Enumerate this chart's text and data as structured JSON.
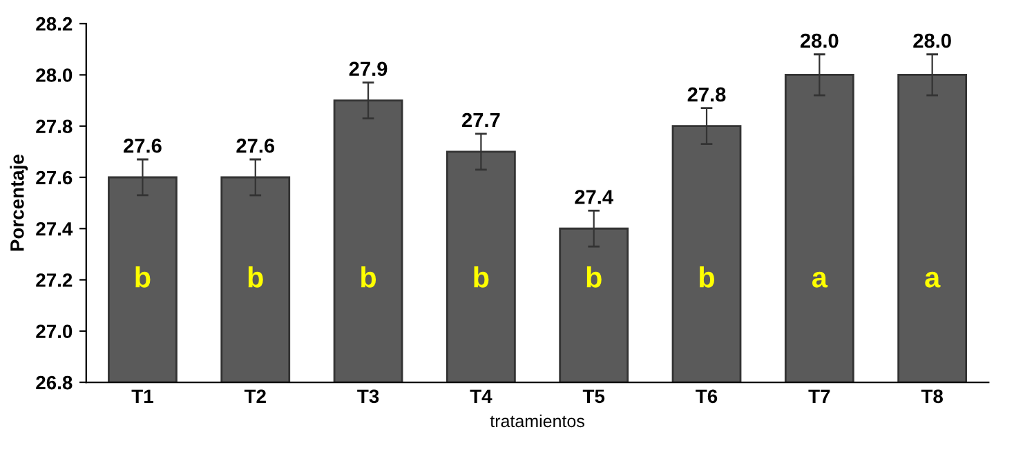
{
  "chart_data": {
    "type": "bar",
    "xlabel": "tratamientos",
    "ylabel": "Porcentaje",
    "categories": [
      "T1",
      "T2",
      "T3",
      "T4",
      "T5",
      "T6",
      "T7",
      "T8"
    ],
    "values": [
      27.6,
      27.6,
      27.9,
      27.7,
      27.4,
      27.8,
      28.0,
      28.0
    ],
    "value_labels": [
      "27.6",
      "27.6",
      "27.9",
      "27.7",
      "27.4",
      "27.8",
      "28.0",
      "28.0"
    ],
    "errors": [
      0.07,
      0.07,
      0.07,
      0.07,
      0.07,
      0.07,
      0.08,
      0.08
    ],
    "color": "#5a5a5a",
    "ylim": [
      26.8,
      28.2
    ],
    "yticks": [
      {
        "value": 26.8,
        "label": "26.8"
      },
      {
        "value": 27.0,
        "label": "27.0"
      },
      {
        "value": 27.2,
        "label": "27.2"
      },
      {
        "value": 27.4,
        "label": "27.4"
      },
      {
        "value": 27.6,
        "label": "27.6"
      },
      {
        "value": 27.8,
        "label": "27.8"
      },
      {
        "value": 28.0,
        "label": "28.0"
      },
      {
        "value": 28.2,
        "label": "28.2"
      }
    ],
    "grid": false,
    "annotations": [
      "b",
      "b",
      "b",
      "b",
      "b",
      "b",
      "a",
      "a"
    ]
  }
}
